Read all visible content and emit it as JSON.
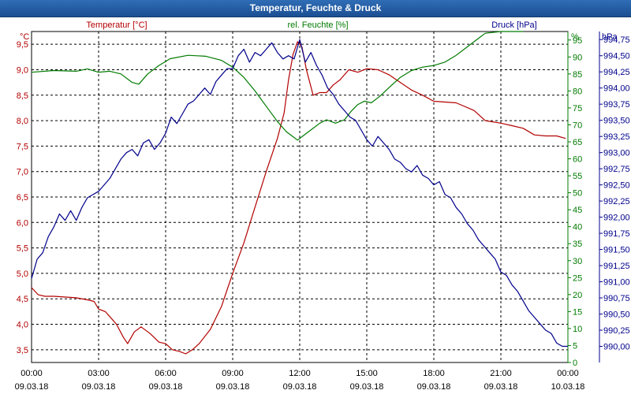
{
  "title": "Temperatur, Feuchte & Druck",
  "colors": {
    "temp": "#b30000",
    "hum": "#007a00",
    "press": "#00008b",
    "title_bg": "#1f5aa0",
    "grid": "#000000"
  },
  "chart_data": {
    "type": "line",
    "title": "Temperatur, Feuchte & Druck",
    "x_ticks": [
      {
        "h": 0,
        "time": "00:00",
        "date": "09.03.18"
      },
      {
        "h": 3,
        "time": "03:00",
        "date": "09.03.18"
      },
      {
        "h": 6,
        "time": "06:00",
        "date": "09.03.18"
      },
      {
        "h": 9,
        "time": "09:00",
        "date": "09.03.18"
      },
      {
        "h": 12,
        "time": "12:00",
        "date": "09.03.18"
      },
      {
        "h": 15,
        "time": "15:00",
        "date": "09.03.18"
      },
      {
        "h": 18,
        "time": "18:00",
        "date": "09.03.18"
      },
      {
        "h": 21,
        "time": "21:00",
        "date": "09.03.18"
      },
      {
        "h": 24,
        "time": "00:00",
        "date": "10.03.18"
      }
    ],
    "xlim": [
      0,
      24
    ],
    "axes": {
      "temp": {
        "label": "Temperatur [°C]",
        "unit": "°C",
        "min": 3.25,
        "max": 9.75,
        "ticks": [
          "3,5",
          "4,0",
          "4,5",
          "5,0",
          "5,5",
          "6,0",
          "6,5",
          "7,0",
          "7,5",
          "8,0",
          "8,5",
          "9,0",
          "9,5"
        ]
      },
      "hum": {
        "label": "rel. Feuchte [%]",
        "unit": "%",
        "min": 0,
        "max": 97.5,
        "ticks": [
          "0",
          "5",
          "10",
          "15",
          "20",
          "25",
          "30",
          "35",
          "40",
          "45",
          "50",
          "55",
          "60",
          "65",
          "70",
          "75",
          "80",
          "85",
          "90",
          "95"
        ]
      },
      "press": {
        "label": "Druck [hPa]",
        "unit": "hPa",
        "min": 989.75,
        "max": 994.875,
        "ticks": [
          "990,00",
          "990,25",
          "990,50",
          "990,75",
          "991,00",
          "991,25",
          "991,50",
          "991,75",
          "992,00",
          "992,25",
          "992,50",
          "992,75",
          "993,00",
          "993,25",
          "993,50",
          "993,75",
          "994,00",
          "994,25",
          "994,50",
          "994,75"
        ]
      }
    },
    "series": [
      {
        "name": "Temperatur [°C]",
        "axis": "temp",
        "color": "#b30000",
        "x": [
          0,
          0.3,
          0.6,
          1,
          2,
          2.5,
          2.8,
          3,
          3.3,
          3.5,
          3.8,
          4.1,
          4.3,
          4.6,
          4.9,
          5.3,
          5.7,
          6,
          6.3,
          6.6,
          6.9,
          7.2,
          7.5,
          8,
          8.5,
          9,
          9.5,
          10,
          10.5,
          11,
          11.3,
          11.5,
          11.7,
          11.9,
          12.1,
          12.3,
          12.6,
          12.9,
          13.2,
          13.5,
          13.8,
          14.2,
          14.6,
          15,
          15.5,
          16,
          16.5,
          17,
          17.5,
          18,
          19,
          19.8,
          20.3,
          21,
          21.5,
          22,
          22.5,
          23,
          23.5,
          23.9
        ],
        "y": [
          4.72,
          4.58,
          4.55,
          4.55,
          4.52,
          4.48,
          4.45,
          4.3,
          4.25,
          4.15,
          4.0,
          3.75,
          3.62,
          3.85,
          3.95,
          3.82,
          3.65,
          3.62,
          3.5,
          3.47,
          3.42,
          3.5,
          3.62,
          3.9,
          4.35,
          5.0,
          5.6,
          6.3,
          7.0,
          7.65,
          8.15,
          8.8,
          9.3,
          9.55,
          9.45,
          9.0,
          8.5,
          8.55,
          8.55,
          8.7,
          8.8,
          9.0,
          8.95,
          9.02,
          9.0,
          8.9,
          8.75,
          8.6,
          8.5,
          8.38,
          8.35,
          8.2,
          8.0,
          7.95,
          7.9,
          7.85,
          7.72,
          7.7,
          7.7,
          7.65
        ]
      },
      {
        "name": "rel. Feuchte [%]",
        "axis": "hum",
        "color": "#007a00",
        "x": [
          0,
          1,
          2,
          2.5,
          3,
          3.5,
          4,
          4.5,
          4.8,
          5.2,
          5.7,
          6.2,
          7,
          7.8,
          8.5,
          9,
          9.5,
          10,
          10.5,
          11,
          11.4,
          11.7,
          11.9,
          12.1,
          12.5,
          12.9,
          13.2,
          13.6,
          14,
          14.3,
          14.6,
          14.9,
          15.2,
          15.6,
          16,
          16.5,
          17,
          17.5,
          18,
          18.5,
          19,
          19.5,
          20,
          20.3,
          21,
          21.5,
          22
        ],
        "y": [
          85.5,
          86,
          85.8,
          86.5,
          85.5,
          85.8,
          85,
          82.5,
          82,
          85,
          87.5,
          89.5,
          90.5,
          90.2,
          89,
          87,
          84,
          80,
          75.5,
          71,
          68,
          66.5,
          65.5,
          66.5,
          68.5,
          70.5,
          71.5,
          70.5,
          71.5,
          74,
          76,
          77,
          76.5,
          78.5,
          81,
          84,
          86,
          87,
          87.5,
          88.5,
          90.5,
          93,
          95.5,
          97,
          97.5,
          97.5,
          97.5
        ]
      },
      {
        "name": "Druck [hPa]",
        "axis": "press",
        "color": "#00008b",
        "x": [
          0,
          0.25,
          0.5,
          0.75,
          1,
          1.25,
          1.5,
          1.75,
          2,
          2.25,
          2.5,
          2.75,
          3,
          3.25,
          3.5,
          3.75,
          4,
          4.25,
          4.5,
          4.75,
          5,
          5.25,
          5.5,
          5.75,
          6,
          6.25,
          6.5,
          6.75,
          7,
          7.25,
          7.5,
          7.75,
          8,
          8.25,
          8.5,
          8.75,
          9,
          9.25,
          9.5,
          9.75,
          10,
          10.25,
          10.5,
          10.75,
          11,
          11.25,
          11.5,
          11.75,
          12,
          12.25,
          12.5,
          12.75,
          13,
          13.25,
          13.5,
          13.75,
          14,
          14.25,
          14.5,
          14.75,
          15,
          15.25,
          15.5,
          15.75,
          16,
          16.25,
          16.5,
          16.75,
          17,
          17.25,
          17.5,
          17.75,
          18,
          18.25,
          18.5,
          18.75,
          19,
          19.25,
          19.5,
          19.75,
          20,
          20.25,
          20.5,
          20.75,
          21,
          21.25,
          21.5,
          21.75,
          22,
          22.25,
          22.5,
          22.75,
          23,
          23.25,
          23.5,
          23.75,
          24
        ],
        "y": [
          991.05,
          991.35,
          991.45,
          991.7,
          991.85,
          992.05,
          991.95,
          992.1,
          991.95,
          992.15,
          992.3,
          992.35,
          992.4,
          992.5,
          992.6,
          992.75,
          992.9,
          993.0,
          993.05,
          992.95,
          993.15,
          993.2,
          993.05,
          993.15,
          993.3,
          993.55,
          993.45,
          993.6,
          993.75,
          993.8,
          993.9,
          994.0,
          993.9,
          994.1,
          994.2,
          994.3,
          994.3,
          994.5,
          994.6,
          994.4,
          994.55,
          994.5,
          994.6,
          994.7,
          994.55,
          994.45,
          994.5,
          994.45,
          994.75,
          994.4,
          994.55,
          994.35,
          994.2,
          994.0,
          993.9,
          993.75,
          993.65,
          993.55,
          993.5,
          993.35,
          993.2,
          993.1,
          993.25,
          993.15,
          993.05,
          992.9,
          992.85,
          992.75,
          992.7,
          992.8,
          992.65,
          992.6,
          992.5,
          992.55,
          992.35,
          992.3,
          992.15,
          992.05,
          991.9,
          991.8,
          991.65,
          991.55,
          991.45,
          991.35,
          991.15,
          991.1,
          990.95,
          990.85,
          990.7,
          990.55,
          990.45,
          990.35,
          990.25,
          990.2,
          990.05,
          990.0,
          990.0
        ]
      }
    ]
  }
}
